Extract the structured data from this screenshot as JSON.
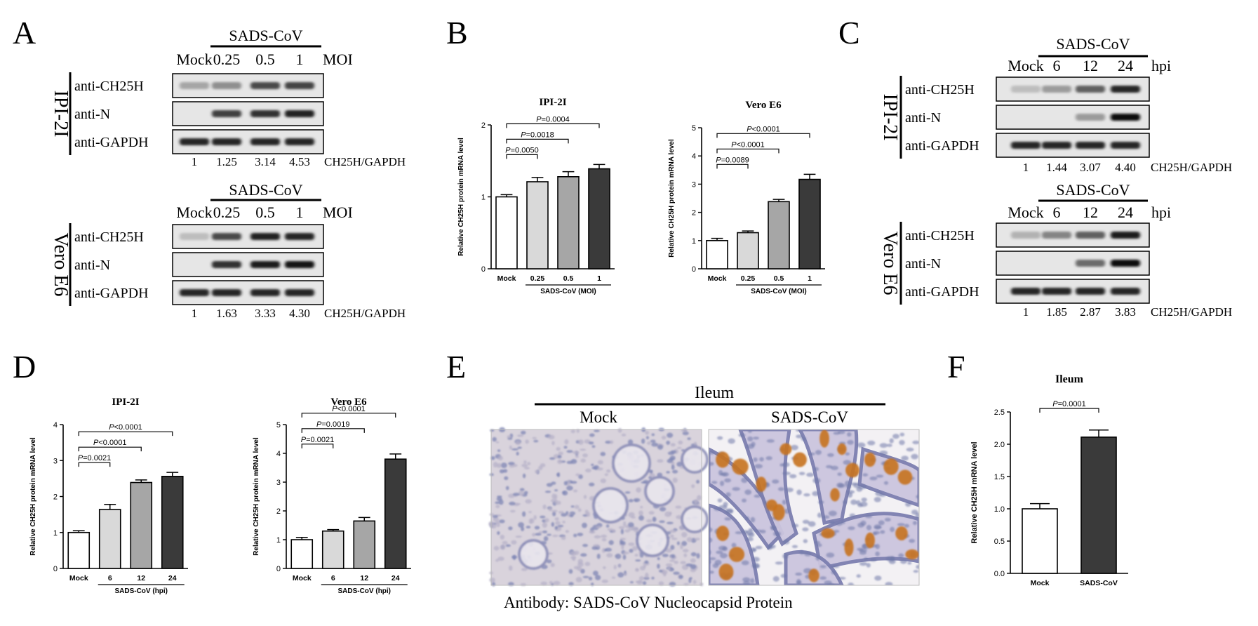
{
  "panel_letters": {
    "A": "A",
    "B": "B",
    "C": "C",
    "D": "D",
    "E": "E",
    "F": "F"
  },
  "blot_A": {
    "virus": "SADS-CoV",
    "lanes": [
      "Mock",
      "0.25",
      "0.5",
      "1"
    ],
    "lane_unit": "MOI",
    "blocks": [
      {
        "cell": "IPI-2I",
        "bands": [
          "anti-CH25H",
          "anti-N",
          "anti-GAPDH"
        ],
        "ratios": [
          "1",
          "1.25",
          "3.14",
          "4.53"
        ],
        "ratio_label": "CH25H/GAPDH",
        "intensity": [
          [
            0.3,
            0.4,
            0.7,
            0.72
          ],
          [
            0,
            0.75,
            0.8,
            0.88
          ],
          [
            0.85,
            0.85,
            0.85,
            0.85
          ]
        ]
      },
      {
        "cell": "Vero E6",
        "bands": [
          "anti-CH25H",
          "anti-N",
          "anti-GAPDH"
        ],
        "ratios": [
          "1",
          "1.63",
          "3.33",
          "4.30"
        ],
        "ratio_label": "CH25H/GAPDH",
        "intensity": [
          [
            0.2,
            0.7,
            0.88,
            0.85
          ],
          [
            0,
            0.8,
            0.9,
            0.92
          ],
          [
            0.85,
            0.85,
            0.85,
            0.85
          ]
        ]
      }
    ]
  },
  "blot_C": {
    "virus": "SADS-CoV",
    "lanes": [
      "Mock",
      "6",
      "12",
      "24"
    ],
    "lane_unit": "hpi",
    "blocks": [
      {
        "cell": "IPI-2I",
        "bands": [
          "anti-CH25H",
          "anti-N",
          "anti-GAPDH"
        ],
        "ratios": [
          "1",
          "1.44",
          "3.07",
          "4.40"
        ],
        "ratio_label": "CH25H/GAPDH",
        "intensity": [
          [
            0.2,
            0.35,
            0.6,
            0.85
          ],
          [
            0,
            0,
            0.35,
            0.95
          ],
          [
            0.85,
            0.85,
            0.85,
            0.85
          ]
        ]
      },
      {
        "cell": "Vero E6",
        "bands": [
          "anti-CH25H",
          "anti-N",
          "anti-GAPDH"
        ],
        "ratios": [
          "1",
          "1.85",
          "2.87",
          "3.83"
        ],
        "ratio_label": "CH25H/GAPDH",
        "intensity": [
          [
            0.25,
            0.45,
            0.6,
            0.9
          ],
          [
            0,
            0,
            0.55,
            0.95
          ],
          [
            0.85,
            0.85,
            0.85,
            0.85
          ]
        ]
      }
    ]
  },
  "chart_data": [
    {
      "type": "bar",
      "title": "IPI-2I",
      "ylabel": "Relative CH25H protein mRNA level",
      "xgroup_label": "SADS-CoV (MOI)",
      "categories": [
        "Mock",
        "0.25",
        "0.5",
        "1"
      ],
      "values": [
        1.0,
        1.21,
        1.28,
        1.39
      ],
      "errors": [
        0.03,
        0.06,
        0.07,
        0.06
      ],
      "ylim": [
        0,
        2
      ],
      "yticks": [
        0,
        1,
        2
      ],
      "pvalues": [
        {
          "label": "P=0.0050",
          "from": 0,
          "to": 1
        },
        {
          "label": "P=0.0018",
          "from": 0,
          "to": 2
        },
        {
          "label": "P=0.0004",
          "from": 0,
          "to": 3
        }
      ]
    },
    {
      "type": "bar",
      "title": "Vero E6",
      "ylabel": "Relative CH25H protein mRNA level",
      "xgroup_label": "SADS-CoV (MOI)",
      "categories": [
        "Mock",
        "0.25",
        "0.5",
        "1"
      ],
      "values": [
        1.0,
        1.28,
        2.38,
        3.17
      ],
      "errors": [
        0.08,
        0.06,
        0.08,
        0.18
      ],
      "ylim": [
        0,
        5
      ],
      "yticks": [
        0,
        1,
        2,
        3,
        4,
        5
      ],
      "pvalues": [
        {
          "label": "P=0.0089",
          "from": 0,
          "to": 1
        },
        {
          "label": "P<0.0001",
          "from": 0,
          "to": 2
        },
        {
          "label": "P<0.0001",
          "from": 0,
          "to": 3
        }
      ]
    },
    {
      "type": "bar",
      "title": "IPI-2I",
      "ylabel": "Relative CH25H protein mRNA level",
      "xgroup_label": "SADS-CoV (hpi)",
      "categories": [
        "Mock",
        "6",
        "12",
        "24"
      ],
      "values": [
        1.0,
        1.64,
        2.39,
        2.56
      ],
      "errors": [
        0.05,
        0.14,
        0.07,
        0.11
      ],
      "ylim": [
        0,
        4
      ],
      "yticks": [
        0,
        1,
        2,
        3,
        4
      ],
      "pvalues": [
        {
          "label": "P=0.0021",
          "from": 0,
          "to": 1
        },
        {
          "label": "P<0.0001",
          "from": 0,
          "to": 2
        },
        {
          "label": "P<0.0001",
          "from": 0,
          "to": 3
        }
      ]
    },
    {
      "type": "bar",
      "title": "Vero E6",
      "ylabel": "Relative CH25H protein mRNA level",
      "xgroup_label": "SADS-CoV (hpi)",
      "categories": [
        "Mock",
        "6",
        "12",
        "24"
      ],
      "values": [
        1.0,
        1.3,
        1.65,
        3.8
      ],
      "errors": [
        0.08,
        0.05,
        0.12,
        0.18
      ],
      "ylim": [
        0,
        5
      ],
      "yticks": [
        0,
        1,
        2,
        3,
        4,
        5
      ],
      "pvalues": [
        {
          "label": "P=0.0021",
          "from": 0,
          "to": 1
        },
        {
          "label": "P=0.0019",
          "from": 0,
          "to": 2
        },
        {
          "label": "P<0.0001",
          "from": 0,
          "to": 3
        }
      ]
    },
    {
      "type": "bar",
      "title": "Ileum",
      "ylabel": "Relative CH25H mRNA level",
      "xgroup_label": "",
      "categories": [
        "Mock",
        "SADS-CoV"
      ],
      "values": [
        1.0,
        2.11
      ],
      "errors": [
        0.08,
        0.11
      ],
      "ylim": [
        0,
        2.5
      ],
      "yticks": [
        0.0,
        0.5,
        1.0,
        1.5,
        2.0,
        2.5
      ],
      "pvalues": [
        {
          "label": "P=0.0001",
          "from": 0,
          "to": 1
        }
      ]
    }
  ],
  "panel_E": {
    "title": "Ileum",
    "labels": [
      "Mock",
      "SADS-CoV"
    ],
    "caption": "Antibody: SADS-CoV Nucleocapsid Protein"
  },
  "colors": {
    "bar_fills": [
      "#ffffff",
      "#d9d9d9",
      "#a6a6a6",
      "#3a3a3a"
    ],
    "stain": "#c7721f",
    "tissue": "#d8d4de",
    "nuclei": "#6f78a8"
  }
}
